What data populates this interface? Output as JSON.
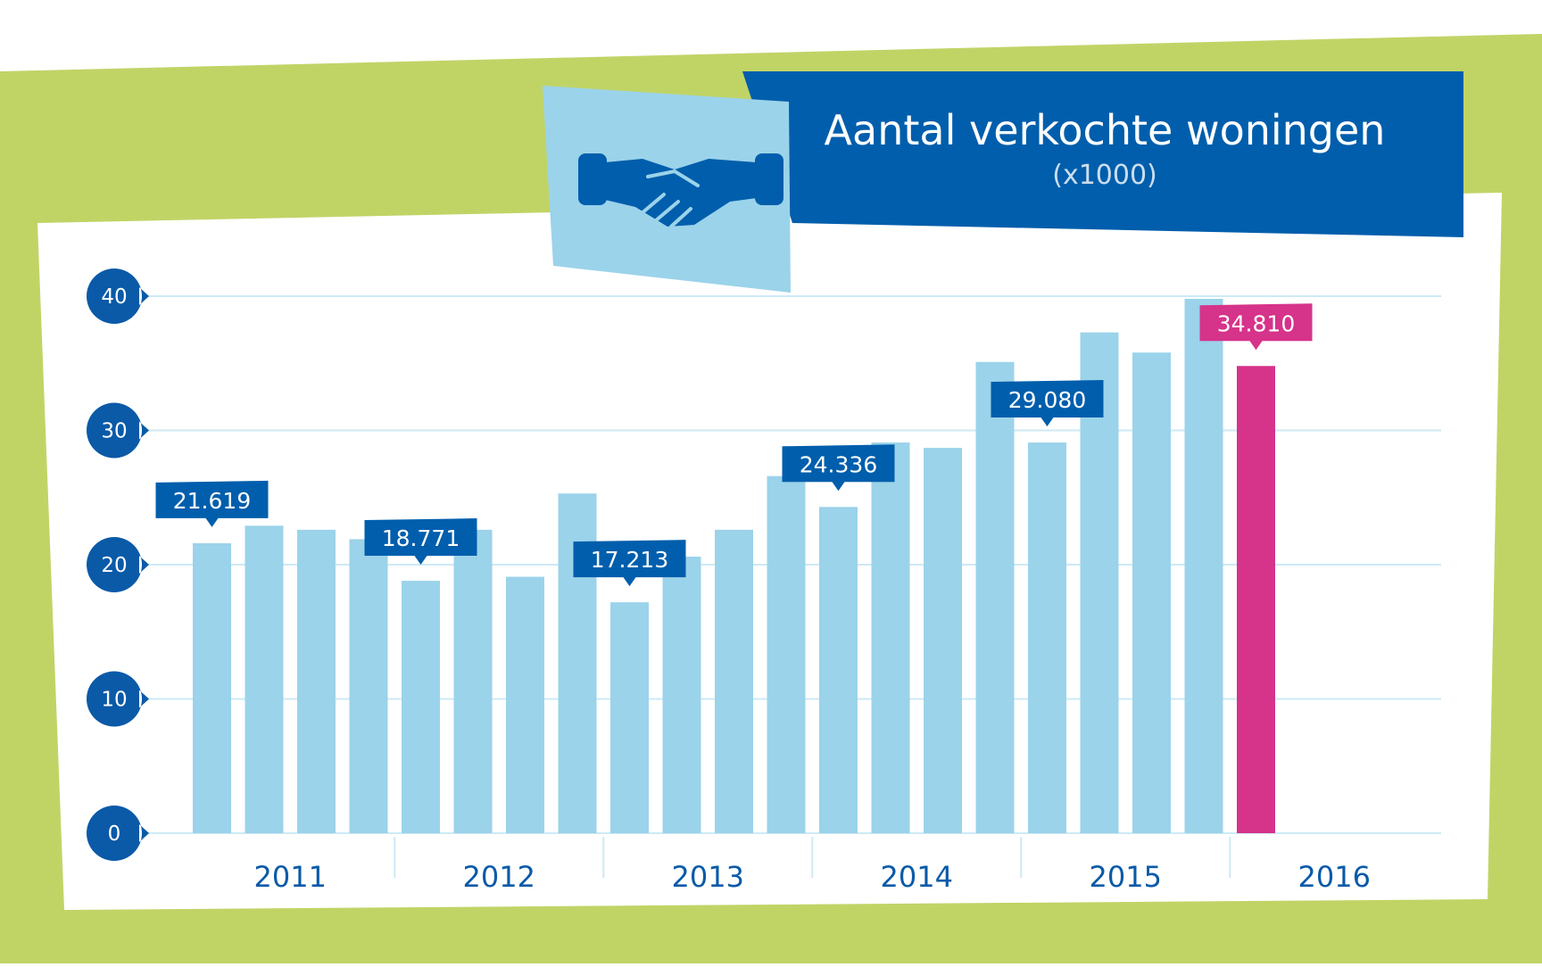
{
  "colors": {
    "background_green": "#c0d466",
    "panel_white": "#ffffff",
    "title_blue": "#005eac",
    "icon_panel": "#9bd3ea",
    "bar": "#9bd3ea",
    "bar_highlight": "#d6338a",
    "axis_dark": "#0a5aa8",
    "grid": "#cdeaf5"
  },
  "icon": "handshake-icon",
  "chart_data": {
    "type": "bar",
    "title": "Aantal verkochte woningen",
    "subtitle": "(x1000)",
    "ylim": [
      0,
      40
    ],
    "yticks": [
      0,
      10,
      20,
      30,
      40
    ],
    "grid": true,
    "years": [
      "2011",
      "2012",
      "2013",
      "2014",
      "2015",
      "2016"
    ],
    "quarters_per_year": 4,
    "values": [
      21.6,
      22.9,
      22.6,
      21.9,
      18.8,
      22.6,
      19.1,
      25.3,
      17.2,
      20.6,
      22.6,
      26.6,
      24.3,
      29.1,
      28.7,
      35.1,
      29.1,
      37.3,
      35.8,
      39.8,
      34.8
    ],
    "highlight_index": 20,
    "callouts": [
      {
        "index": 0,
        "label": "21.619",
        "highlight": false
      },
      {
        "index": 4,
        "label": "18.771",
        "highlight": false
      },
      {
        "index": 8,
        "label": "17.213",
        "highlight": false
      },
      {
        "index": 12,
        "label": "24.336",
        "highlight": false
      },
      {
        "index": 16,
        "label": "29.080",
        "highlight": false
      },
      {
        "index": 20,
        "label": "34.810",
        "highlight": true
      }
    ]
  }
}
